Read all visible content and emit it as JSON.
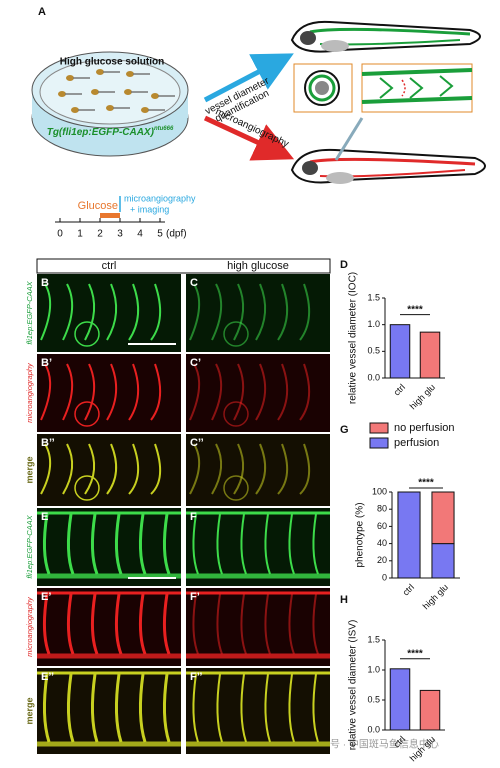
{
  "figure": {
    "panel_a": {
      "label": "A",
      "dish_title": "High glucose solution",
      "transgene": "Tg(fli1ep:EGFP-CAAX)",
      "transgene_superscript": "ntu666",
      "arrow_top": [
        "vessel diameter",
        "quantification"
      ],
      "arrow_bottom": "microangiography"
    },
    "timeline": {
      "treatment": "Glucose",
      "treatment_days": [
        2,
        3
      ],
      "imaging": [
        "microangiography",
        "+ imaging"
      ],
      "imaging_day": 3,
      "ticks": [
        0,
        1,
        2,
        3,
        4,
        5
      ],
      "unit": "(dpf)"
    },
    "columns": [
      "ctrl",
      "high glucose"
    ],
    "panels": [
      [
        "B",
        "C"
      ],
      [
        "B’",
        "C’"
      ],
      [
        "B’’",
        "C’’"
      ],
      [
        "E",
        "F"
      ],
      [
        "E’",
        "F’"
      ],
      [
        "E’’",
        "F’’"
      ]
    ],
    "row_labels": [
      "fli1ep:EGFP-CAAX",
      "microangiography",
      "merge",
      "fli1ep:EGFP-CAAX",
      "microangiography",
      "merge"
    ],
    "watermark": "号 · 中国斑马鱼信息中心"
  },
  "chart_data": [
    {
      "type": "bar",
      "label": "D",
      "ylabel": "relative vessel diameter (IOC)",
      "categories": [
        "ctrl",
        "high glu"
      ],
      "values": [
        1.0,
        0.86
      ],
      "colors": [
        "#7878f2",
        "#f27878"
      ],
      "ylim": [
        0,
        1.5
      ],
      "yticks": [
        {
          "value": 0,
          "label": "0.0"
        },
        0.5,
        {
          "value": 1,
          "label": "1.0"
        },
        1.5
      ],
      "annotation": "****"
    },
    {
      "type": "stacked_bar",
      "label": "G",
      "ylabel": "phenotype (%)",
      "categories": [
        "ctrl",
        "high glu"
      ],
      "series": [
        {
          "name": "perfusion",
          "color": "#7878f2",
          "values": [
            100,
            40
          ]
        },
        {
          "name": "no perfusion",
          "color": "#f27878",
          "values": [
            0,
            60
          ]
        }
      ],
      "ylim": [
        0,
        100
      ],
      "yticks": [
        0,
        20,
        40,
        60,
        80,
        100
      ],
      "annotation": "****"
    },
    {
      "type": "bar",
      "label": "H",
      "ylabel": "relative vessel diameter (ISV)",
      "categories": [
        "ctrl",
        "high glu"
      ],
      "values": [
        1.02,
        0.66
      ],
      "colors": [
        "#7878f2",
        "#f27878"
      ],
      "ylim": [
        0,
        1.5
      ],
      "yticks": [
        {
          "value": 0,
          "label": "0.0"
        },
        0.5,
        {
          "value": 1,
          "label": "1.0"
        },
        1.5
      ],
      "annotation": "****"
    }
  ]
}
